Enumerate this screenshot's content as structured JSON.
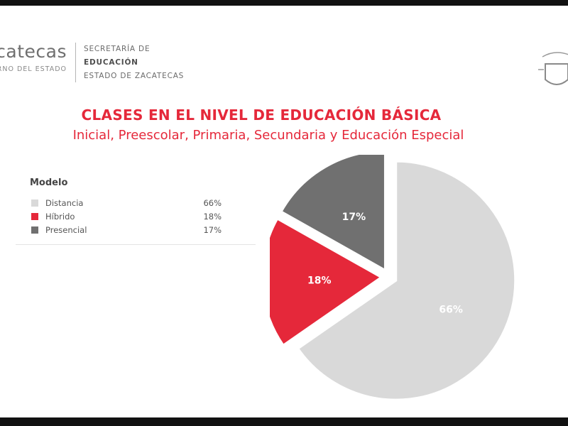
{
  "header": {
    "logo_word": "Zacatecas",
    "logo_sub": "GOBIERNO DEL ESTADO",
    "secretaria": {
      "line1": "SECRETARÍA DE",
      "line2": "EDUCACIÓN",
      "line3": "ESTADO DE ZACATECAS"
    }
  },
  "colors": {
    "accent": "#e5283a",
    "distancia": "#d9d9d9",
    "hibrido": "#e5283a",
    "presencial": "#707070"
  },
  "chart_data": {
    "type": "pie",
    "title": "CLASES EN EL NIVEL DE EDUCACIÓN BÁSICA",
    "subtitle": "Inicial, Preescolar, Primaria, Secundaria y Educación Especial",
    "legend_title": "Modelo",
    "legend_position": "left",
    "exploded": true,
    "slices": [
      {
        "label": "Distancia",
        "value": 66,
        "display": "66%",
        "color": "#d9d9d9",
        "label_color": "#ffffff"
      },
      {
        "label": "Híbrido",
        "value": 18,
        "display": "18%",
        "color": "#e5283a",
        "label_color": "#ffffff"
      },
      {
        "label": "Presencial",
        "value": 17,
        "display": "17%",
        "color": "#707070",
        "label_color": "#ffffff"
      }
    ]
  }
}
